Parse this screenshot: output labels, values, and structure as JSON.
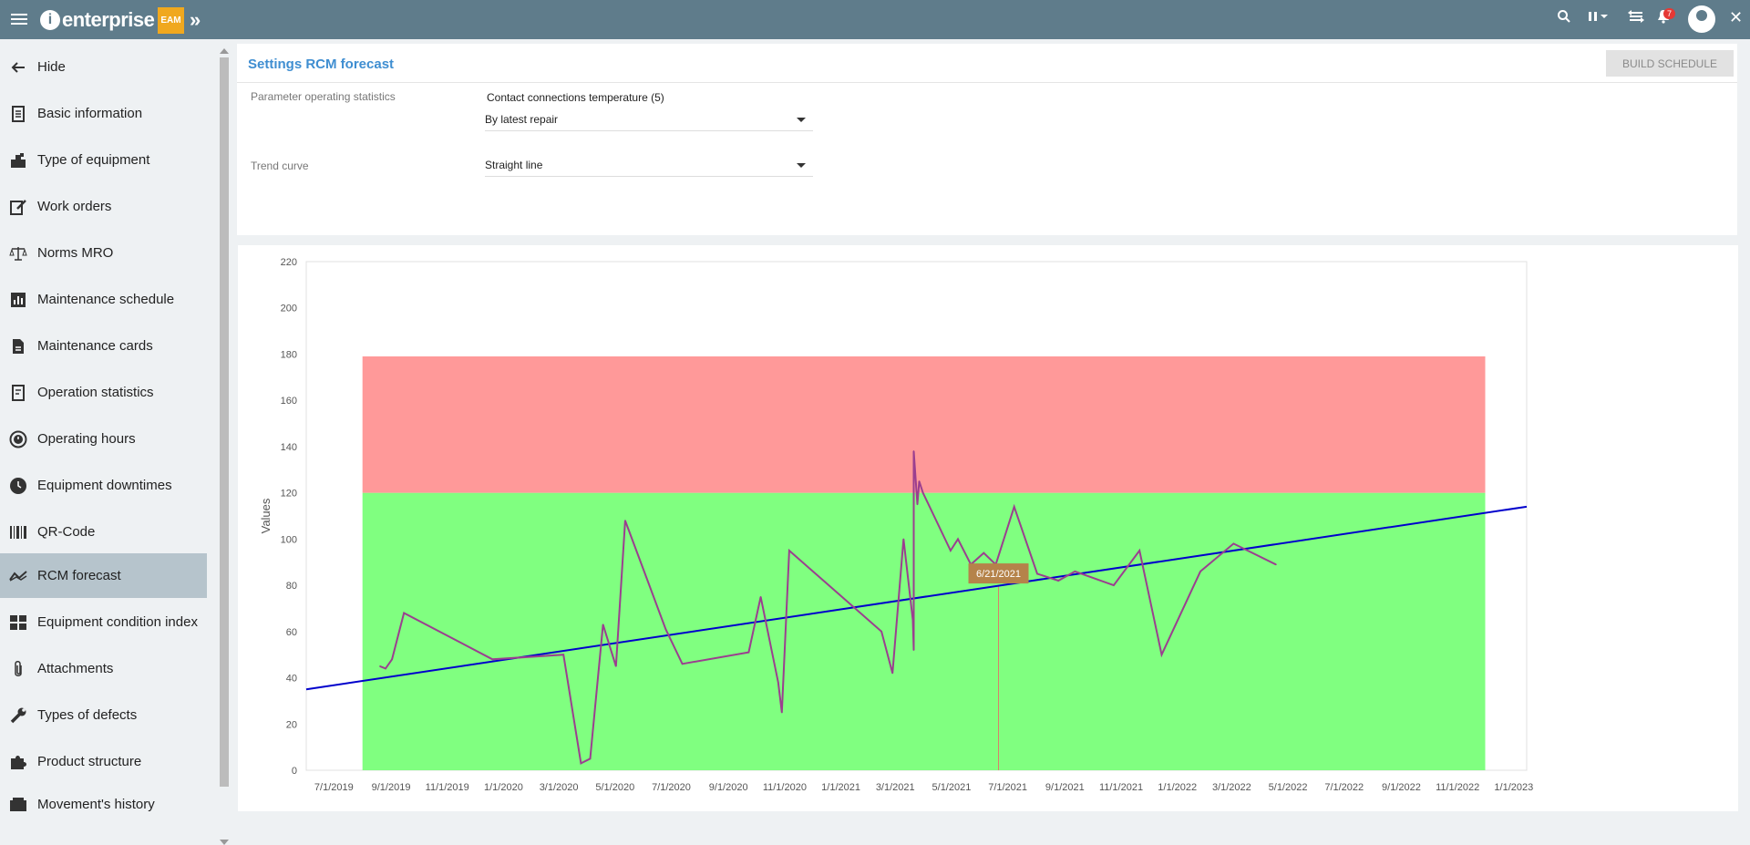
{
  "topbar": {
    "logo_text": "enterprise",
    "logo_badge": "EAM",
    "notifications_count": "7"
  },
  "sidebar": {
    "items": [
      {
        "label": "Hide",
        "icon": "arrow-left-icon"
      },
      {
        "label": "Basic information",
        "icon": "document-icon"
      },
      {
        "label": "Type of equipment",
        "icon": "equipment-icon"
      },
      {
        "label": "Work orders",
        "icon": "edit-icon"
      },
      {
        "label": "Norms MRO",
        "icon": "scales-icon"
      },
      {
        "label": "Maintenance schedule",
        "icon": "bar-chart-icon"
      },
      {
        "label": "Maintenance cards",
        "icon": "card-icon"
      },
      {
        "label": "Operation statistics",
        "icon": "statistics-icon"
      },
      {
        "label": "Operating hours",
        "icon": "clock-history-icon"
      },
      {
        "label": "Equipment downtimes",
        "icon": "clock-icon"
      },
      {
        "label": "QR-Code",
        "icon": "barcode-icon"
      },
      {
        "label": "RCM forecast",
        "icon": "trend-icon"
      },
      {
        "label": "Equipment condition index",
        "icon": "dashboard-icon"
      },
      {
        "label": "Attachments",
        "icon": "paperclip-icon"
      },
      {
        "label": "Types of defects",
        "icon": "wrench-icon"
      },
      {
        "label": "Product structure",
        "icon": "puzzle-icon"
      },
      {
        "label": "Movement's history",
        "icon": "history-icon"
      }
    ],
    "active": "RCM forecast"
  },
  "settings": {
    "title": "Settings RCM forecast",
    "build_button": "BUILD SCHEDULE",
    "param_label": "Parameter operating statistics",
    "param_value": "Contact connections temperature (5)",
    "param_mode": "By latest repair",
    "trend_label": "Trend curve",
    "trend_value": "Straight line"
  },
  "colors": {
    "topbar": "#5f7c8b",
    "title": "#3f8ed1",
    "danger_zone": "#ff9999",
    "safe_zone": "#80ff80",
    "series": "#9b3f8f",
    "trend": "#0000cc",
    "tooltip": "#b5834a"
  },
  "chart_data": {
    "type": "line",
    "ylabel": "Values",
    "ylim": [
      0,
      220
    ],
    "yticks": [
      0,
      20,
      40,
      60,
      80,
      100,
      120,
      140,
      160,
      180,
      200,
      220
    ],
    "xticks": [
      "7/1/2019",
      "9/1/2019",
      "11/1/2019",
      "1/1/2020",
      "3/1/2020",
      "5/1/2020",
      "7/1/2020",
      "9/1/2020",
      "11/1/2020",
      "1/1/2021",
      "3/1/2021",
      "5/1/2021",
      "7/1/2021",
      "9/1/2021",
      "11/1/2021",
      "1/1/2022",
      "3/1/2022",
      "5/1/2022",
      "7/1/2022",
      "9/1/2022",
      "11/1/2022",
      "1/1/2023"
    ],
    "xlim": [
      "2019-06-01",
      "2023-01-15"
    ],
    "zones": [
      {
        "from": 0,
        "to": 120,
        "x_from": "2019-08-01",
        "x_to": "2022-12-01",
        "color": "#80ff80"
      },
      {
        "from": 120,
        "to": 179,
        "x_from": "2019-08-01",
        "x_to": "2022-12-01",
        "color": "#ff9999"
      }
    ],
    "series": [
      {
        "color": "#9b3f8f",
        "points": [
          [
            "2019-08-20",
            45
          ],
          [
            "2019-08-26",
            44
          ],
          [
            "2019-09-02",
            48
          ],
          [
            "2019-09-15",
            68
          ],
          [
            "2019-12-20",
            48
          ],
          [
            "2020-03-06",
            50
          ],
          [
            "2020-03-25",
            3
          ],
          [
            "2020-04-04",
            5
          ],
          [
            "2020-04-18",
            63
          ],
          [
            "2020-05-02",
            45
          ],
          [
            "2020-05-12",
            108
          ],
          [
            "2020-06-25",
            61
          ],
          [
            "2020-07-13",
            46
          ],
          [
            "2020-09-23",
            51
          ],
          [
            "2020-10-06",
            75
          ],
          [
            "2020-10-25",
            38
          ],
          [
            "2020-10-29",
            25
          ],
          [
            "2020-11-06",
            95
          ],
          [
            "2021-02-14",
            60
          ],
          [
            "2021-02-26",
            42
          ],
          [
            "2021-03-10",
            100
          ],
          [
            "2021-03-20",
            65
          ],
          [
            "2021-03-21",
            52
          ],
          [
            "2021-03-21",
            138
          ],
          [
            "2021-03-25",
            115
          ],
          [
            "2021-03-27",
            125
          ],
          [
            "2021-03-31",
            120
          ],
          [
            "2021-04-30",
            95
          ],
          [
            "2021-05-08",
            100
          ],
          [
            "2021-05-22",
            89
          ],
          [
            "2021-06-05",
            94
          ],
          [
            "2021-06-18",
            89
          ],
          [
            "2021-07-08",
            114
          ],
          [
            "2021-08-02",
            85
          ],
          [
            "2021-08-25",
            82
          ],
          [
            "2021-09-12",
            86
          ],
          [
            "2021-10-24",
            80
          ],
          [
            "2021-11-21",
            95
          ],
          [
            "2021-12-15",
            50
          ],
          [
            "2022-01-26",
            86
          ],
          [
            "2022-03-03",
            98
          ],
          [
            "2022-04-18",
            89
          ]
        ]
      }
    ],
    "trend": {
      "color": "#0000cc",
      "from": [
        "2019-06-01",
        35
      ],
      "to": [
        "2023-01-15",
        114
      ]
    },
    "tooltip": {
      "label": "6/21/2021",
      "x": "2021-06-21"
    }
  }
}
